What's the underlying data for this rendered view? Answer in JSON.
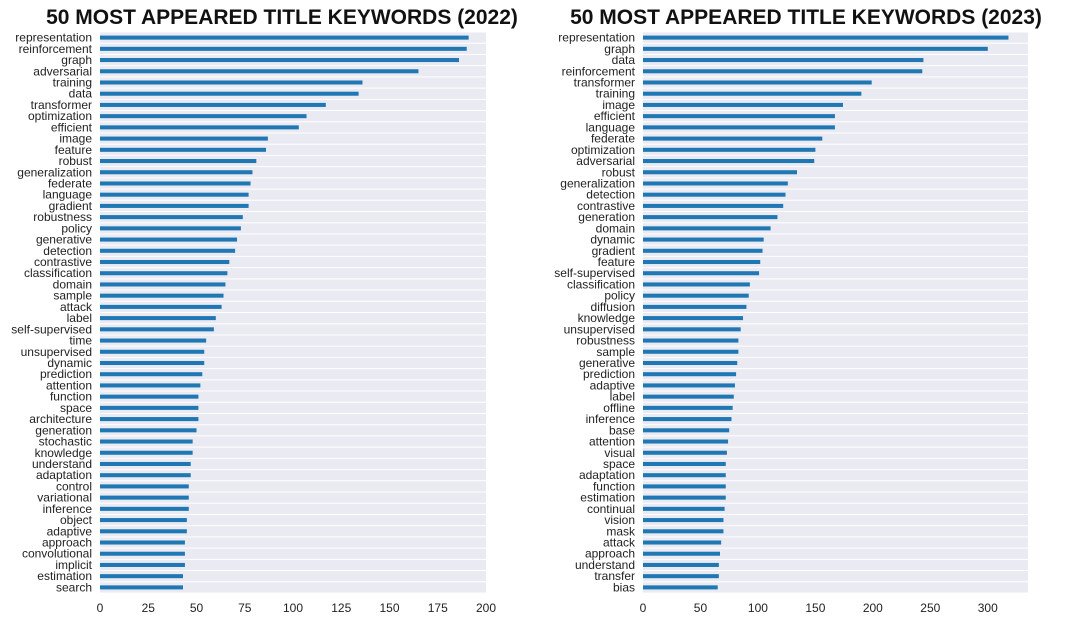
{
  "chart_data": [
    {
      "type": "bar",
      "orientation": "horizontal",
      "title": "50 MOST APPEARED TITLE KEYWORDS (2022)",
      "xlabel": "",
      "ylabel": "",
      "xlim": [
        0,
        200
      ],
      "xticks": [
        0,
        25,
        50,
        75,
        100,
        125,
        150,
        175,
        200
      ],
      "grid": true,
      "bar_color": "#1f77b4",
      "background_color": "#eaeaf2",
      "categories": [
        "representation",
        "reinforcement",
        "graph",
        "adversarial",
        "training",
        "data",
        "transformer",
        "optimization",
        "efficient",
        "image",
        "feature",
        "robust",
        "generalization",
        "federate",
        "language",
        "gradient",
        "robustness",
        "policy",
        "generative",
        "detection",
        "contrastive",
        "classification",
        "domain",
        "sample",
        "attack",
        "label",
        "self-supervised",
        "time",
        "unsupervised",
        "dynamic",
        "prediction",
        "attention",
        "function",
        "space",
        "architecture",
        "generation",
        "stochastic",
        "knowledge",
        "understand",
        "adaptation",
        "control",
        "variational",
        "inference",
        "object",
        "adaptive",
        "approach",
        "convolutional",
        "implicit",
        "estimation",
        "search"
      ],
      "values": [
        191,
        190,
        186,
        165,
        136,
        134,
        117,
        107,
        103,
        87,
        86,
        81,
        79,
        78,
        77,
        77,
        74,
        73,
        71,
        70,
        67,
        66,
        65,
        64,
        63,
        60,
        59,
        55,
        54,
        54,
        53,
        52,
        51,
        51,
        51,
        50,
        48,
        48,
        47,
        47,
        46,
        46,
        46,
        45,
        45,
        44,
        44,
        44,
        43,
        43
      ]
    },
    {
      "type": "bar",
      "orientation": "horizontal",
      "title": "50 MOST APPEARED TITLE KEYWORDS (2023)",
      "xlabel": "",
      "ylabel": "",
      "xlim": [
        0,
        335
      ],
      "xticks": [
        0,
        50,
        100,
        150,
        200,
        250,
        300
      ],
      "grid": true,
      "bar_color": "#1f77b4",
      "background_color": "#eaeaf2",
      "categories": [
        "representation",
        "graph",
        "data",
        "reinforcement",
        "transformer",
        "training",
        "image",
        "efficient",
        "language",
        "federate",
        "optimization",
        "adversarial",
        "robust",
        "generalization",
        "detection",
        "contrastive",
        "generation",
        "domain",
        "dynamic",
        "gradient",
        "feature",
        "self-supervised",
        "classification",
        "policy",
        "diffusion",
        "knowledge",
        "unsupervised",
        "robustness",
        "sample",
        "generative",
        "prediction",
        "adaptive",
        "label",
        "offline",
        "inference",
        "base",
        "attention",
        "visual",
        "space",
        "adaptation",
        "function",
        "estimation",
        "continual",
        "vision",
        "mask",
        "attack",
        "approach",
        "understand",
        "transfer",
        "bias"
      ],
      "values": [
        318,
        300,
        244,
        243,
        199,
        190,
        174,
        167,
        167,
        156,
        150,
        149,
        134,
        126,
        124,
        122,
        117,
        111,
        105,
        104,
        102,
        101,
        93,
        92,
        90,
        87,
        85,
        83,
        83,
        82,
        81,
        80,
        79,
        78,
        77,
        75,
        74,
        73,
        72,
        72,
        72,
        72,
        71,
        70,
        70,
        68,
        67,
        66,
        66,
        65
      ]
    }
  ]
}
